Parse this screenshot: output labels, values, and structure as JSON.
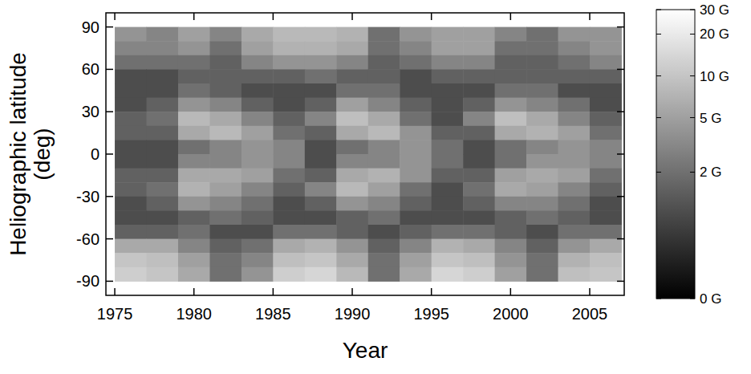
{
  "chart_data": {
    "type": "heatmap",
    "x_label": "Year",
    "y_label": "Heliographic latitude (deg)",
    "xlim": [
      1974.44,
      2007.18
    ],
    "ylim": [
      -100,
      100
    ],
    "xticks": [
      1975,
      1980,
      1985,
      1990,
      1995,
      2000,
      2005
    ],
    "yticks": [
      -90,
      -60,
      -30,
      0,
      30,
      60,
      90
    ],
    "x_edges": [
      1975,
      1977,
      1979,
      1981,
      1983,
      1985,
      1987,
      1989,
      1991,
      1993,
      1995,
      1997,
      1999,
      2001,
      2003,
      2005,
      2007
    ],
    "y_edges": [
      90,
      80,
      70,
      60,
      50,
      40,
      30,
      20,
      10,
      0,
      -10,
      -20,
      -30,
      -40,
      -50,
      -60,
      -70,
      -80,
      -90
    ],
    "cells": [
      [
        4,
        3,
        5,
        3,
        6,
        8,
        8,
        7,
        2,
        4,
        5,
        5,
        3,
        2,
        4,
        4
      ],
      [
        3,
        3,
        4,
        2,
        5,
        7,
        7,
        6,
        2,
        3,
        5,
        5,
        2,
        2,
        3,
        4
      ],
      [
        2,
        2,
        2,
        1.5,
        3,
        4,
        4,
        3,
        1.5,
        2,
        3,
        3,
        1.5,
        1.5,
        2,
        3
      ],
      [
        1,
        1,
        1.5,
        1.5,
        1.5,
        1.5,
        2,
        1.5,
        1.5,
        1,
        1.5,
        1.5,
        1.5,
        1.5,
        1.5,
        1.5
      ],
      [
        1,
        1,
        2,
        1.5,
        1,
        1,
        1,
        2,
        2,
        1,
        1,
        1,
        2,
        2,
        1,
        1
      ],
      [
        1,
        1.5,
        4,
        3,
        1.5,
        1,
        1.5,
        5,
        3,
        1.5,
        1,
        1.5,
        4,
        3,
        2,
        1
      ],
      [
        1.5,
        2,
        8,
        6,
        3,
        1.5,
        3,
        9,
        6,
        2,
        1,
        3,
        9,
        6,
        3,
        1.5
      ],
      [
        1.5,
        1.5,
        6,
        8,
        5,
        2,
        1.5,
        6,
        8,
        4,
        1.5,
        1.5,
        6,
        7,
        5,
        2
      ],
      [
        1,
        1,
        2,
        3,
        4,
        3,
        1,
        2,
        3,
        4,
        2,
        1,
        2,
        3,
        4,
        3
      ],
      [
        1,
        1,
        3,
        3,
        4,
        3,
        1,
        3,
        3,
        4,
        2,
        1,
        2,
        4,
        4,
        3
      ],
      [
        1.5,
        1.5,
        6,
        6,
        5,
        2,
        1.5,
        6,
        7,
        4,
        1.5,
        1.5,
        5,
        6,
        5,
        2
      ],
      [
        1.5,
        2,
        7,
        5,
        3,
        1.5,
        3,
        8,
        5,
        2,
        1,
        2,
        6,
        5,
        3,
        1.5
      ],
      [
        1,
        1.5,
        4,
        3,
        2,
        1,
        1.5,
        4,
        3,
        1.5,
        1,
        1.5,
        3,
        3,
        2,
        1
      ],
      [
        1,
        1,
        1.5,
        2,
        1.5,
        1,
        1,
        1.5,
        2,
        1,
        1,
        1,
        1.5,
        2,
        1.5,
        1
      ],
      [
        1.5,
        1.5,
        2,
        1,
        1,
        2,
        2,
        1.5,
        1,
        1.5,
        2,
        2,
        1.5,
        1,
        2,
        2
      ],
      [
        6,
        6,
        3,
        1.5,
        2,
        6,
        7,
        4,
        1.5,
        3,
        7,
        6,
        3,
        1.5,
        4,
        6
      ],
      [
        10,
        9,
        5,
        2,
        3,
        9,
        10,
        6,
        2,
        5,
        10,
        9,
        4,
        2,
        7,
        9
      ],
      [
        12,
        10,
        6,
        2,
        4,
        12,
        14,
        8,
        2,
        6,
        14,
        12,
        5,
        2,
        9,
        10
      ]
    ],
    "color_range": [
      0,
      30
    ],
    "color_ticks": [
      {
        "value": 0,
        "label": "0 G"
      },
      {
        "value": 2,
        "label": "2 G"
      },
      {
        "value": 5,
        "label": "5 G"
      },
      {
        "value": 10,
        "label": "10 G"
      },
      {
        "value": 20,
        "label": "20 G"
      },
      {
        "value": 30,
        "label": "30 G"
      }
    ]
  }
}
